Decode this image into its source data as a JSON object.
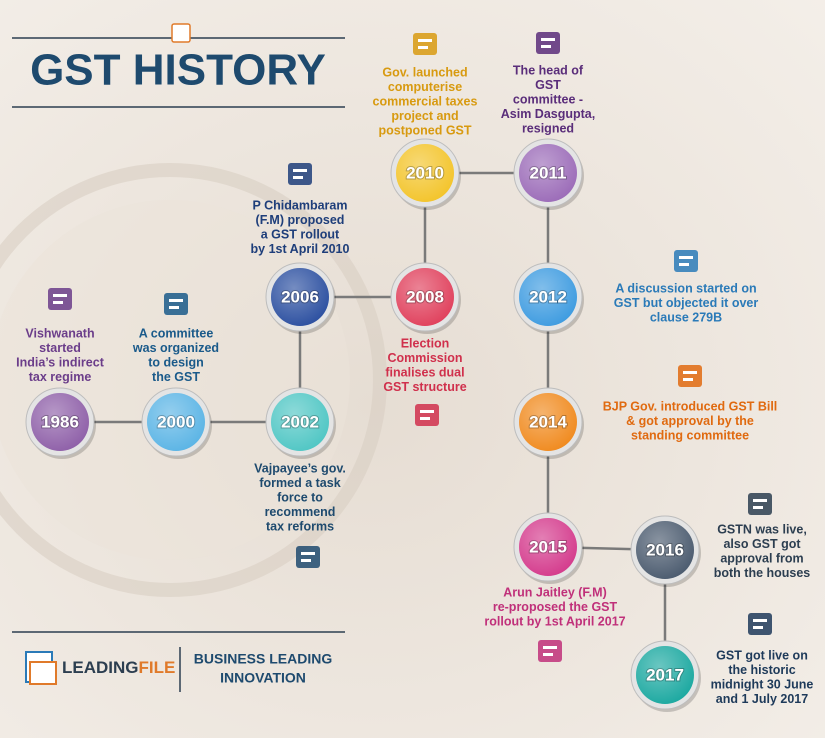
{
  "header": {
    "title": "GST HISTORY"
  },
  "events": [
    {
      "year": "1986",
      "lines": [
        "Vishwanath",
        "started",
        "India’s indirect",
        "tax regime"
      ]
    },
    {
      "year": "2000",
      "lines": [
        "A committee",
        "was organized",
        "to design",
        "the GST"
      ]
    },
    {
      "year": "2002",
      "lines": [
        "Vajpayee’s gov.",
        "formed a task",
        "force to",
        "recommend",
        "tax reforms"
      ]
    },
    {
      "year": "2006",
      "lines": [
        "P Chidambaram",
        "(F.M) proposed",
        "a GST rollout",
        "by 1st April 2010"
      ]
    },
    {
      "year": "2008",
      "lines": [
        "Election",
        "Commission",
        "finalises dual",
        "GST structure"
      ]
    },
    {
      "year": "2010",
      "lines": [
        "Gov. launched",
        "computerise",
        "commercial taxes",
        "project and",
        "postponed GST"
      ]
    },
    {
      "year": "2011",
      "lines": [
        "The head of",
        "GST",
        "committee -",
        "Asim Dasgupta,",
        "resigned"
      ]
    },
    {
      "year": "2012",
      "lines": [
        "A discussion started on",
        "GST but objected it over",
        "clause 279B"
      ]
    },
    {
      "year": "2014",
      "lines": [
        "BJP Gov. introduced GST Bill",
        "& got approval by the",
        "standing committee"
      ]
    },
    {
      "year": "2015",
      "lines": [
        "Arun Jaitley (F.M)",
        "re-proposed the GST",
        "rollout by 1st April 2017"
      ]
    },
    {
      "year": "2016",
      "lines": [
        "GSTN was live,",
        "also GST got",
        "approval from",
        "both the houses"
      ]
    },
    {
      "year": "2017",
      "lines": [
        "GST got live on",
        "the historic",
        "midnight 30 June",
        "and 1 July 2017"
      ]
    }
  ],
  "footer": {
    "brand": [
      "LEADING",
      "FILE"
    ],
    "tagline": [
      "BUSINESS LEADING",
      "INNOVATION"
    ]
  }
}
